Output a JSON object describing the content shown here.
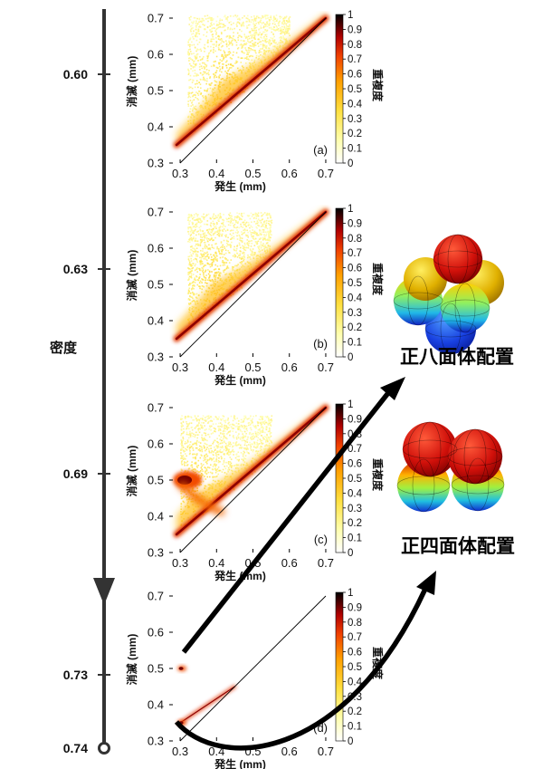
{
  "density_axis": {
    "label": "密度",
    "ticks": [
      {
        "value": "0.60",
        "panel": 0
      },
      {
        "value": "0.63",
        "panel": 1
      },
      {
        "value": "0.69",
        "panel": 2
      },
      {
        "value": "0.73",
        "panel": 3
      },
      {
        "value": "0.74",
        "panel": 4
      }
    ]
  },
  "configurations": {
    "octahedral": {
      "label": "正八面体配置"
    },
    "tetrahedral": {
      "label": "正四面体配置"
    }
  },
  "colors": {
    "cmap_low": "#ffffd0",
    "cmap_mid": "#ffb000",
    "cmap_high": "#e02000",
    "cmap_top": "#000000",
    "arrow": "#000000",
    "axis_line": "#333333"
  },
  "icons": [
    "octahedral-sphere-cluster-icon",
    "tetrahedral-sphere-cluster-icon"
  ],
  "chart_data": [
    {
      "type": "heatmap",
      "panel_label": "(a)",
      "xlabel": "発生 (mm)",
      "ylabel": "消滅 (mm)",
      "colorbar_label": "重複度",
      "xlim": [
        0.27,
        0.72
      ],
      "ylim": [
        0.3,
        0.72
      ],
      "xticks": [
        "0.3",
        "0.4",
        "0.5",
        "0.6",
        "0.7"
      ],
      "yticks": [
        "0.3",
        "0.4",
        "0.5",
        "0.6",
        "0.7"
      ],
      "colorbar_ticks": [
        "0",
        "0.1",
        "0.2",
        "0.3",
        "0.4",
        "0.5",
        "0.6",
        "0.7",
        "0.8",
        "0.9",
        "1"
      ],
      "diagonal": {
        "from": [
          0.3,
          0.3
        ],
        "to": [
          0.7,
          0.7
        ]
      },
      "band": {
        "birth_start": 0.29,
        "death_start": 0.35,
        "birth_end": 0.7,
        "death_end": 0.7
      },
      "cloud": {
        "birth_range": [
          0.32,
          0.6
        ],
        "death_max": 0.71,
        "peak_birth": 0.42
      }
    },
    {
      "type": "heatmap",
      "panel_label": "(b)",
      "xlabel": "発生 (mm)",
      "ylabel": "消滅 (mm)",
      "colorbar_label": "重複度",
      "xlim": [
        0.27,
        0.72
      ],
      "ylim": [
        0.3,
        0.72
      ],
      "xticks": [
        "0.3",
        "0.4",
        "0.5",
        "0.6",
        "0.7"
      ],
      "yticks": [
        "0.3",
        "0.4",
        "0.5",
        "0.6",
        "0.7"
      ],
      "colorbar_ticks": [
        "0",
        "0.1",
        "0.2",
        "0.3",
        "0.4",
        "0.5",
        "0.6",
        "0.7",
        "0.8",
        "0.9",
        "1"
      ],
      "diagonal": {
        "from": [
          0.3,
          0.3
        ],
        "to": [
          0.7,
          0.7
        ]
      },
      "band": {
        "birth_start": 0.29,
        "death_start": 0.35,
        "birth_end": 0.7,
        "death_end": 0.7
      },
      "cloud": {
        "birth_range": [
          0.32,
          0.55
        ],
        "death_max": 0.7,
        "peak_birth": 0.39
      }
    },
    {
      "type": "heatmap",
      "panel_label": "(c)",
      "xlabel": "発生 (mm)",
      "ylabel": "消滅 (mm)",
      "colorbar_label": "重複度",
      "xlim": [
        0.27,
        0.72
      ],
      "ylim": [
        0.3,
        0.72
      ],
      "xticks": [
        "0.3",
        "0.4",
        "0.5",
        "0.6",
        "0.7"
      ],
      "yticks": [
        "0.3",
        "0.4",
        "0.5",
        "0.6",
        "0.7"
      ],
      "colorbar_ticks": [
        "0",
        "0.1",
        "0.2",
        "0.3",
        "0.4",
        "0.5",
        "0.6",
        "0.7",
        "0.8",
        "0.9",
        "1"
      ],
      "diagonal": {
        "from": [
          0.3,
          0.3
        ],
        "to": [
          0.7,
          0.7
        ]
      },
      "band": {
        "birth_start": 0.29,
        "death_start": 0.35,
        "birth_end": 0.7,
        "death_end": 0.7
      },
      "cloud": {
        "birth_range": [
          0.3,
          0.55
        ],
        "death_max": 0.68,
        "peak_birth": 0.34
      },
      "hotspot": {
        "birth": 0.3,
        "death": 0.5
      }
    },
    {
      "type": "heatmap",
      "panel_label": "(d)",
      "xlabel": "発生 (mm)",
      "ylabel": "消滅 (mm)",
      "colorbar_label": "重複度",
      "xlim": [
        0.27,
        0.72
      ],
      "ylim": [
        0.3,
        0.72
      ],
      "xticks": [
        "0.3",
        "0.4",
        "0.5",
        "0.6",
        "0.7"
      ],
      "yticks": [
        "0.3",
        "0.4",
        "0.5",
        "0.6",
        "0.7"
      ],
      "colorbar_ticks": [
        "0",
        "0.1",
        "0.2",
        "0.3",
        "0.4",
        "0.5",
        "0.6",
        "0.7",
        "0.8",
        "0.9",
        "1"
      ],
      "diagonal": {
        "from": [
          0.3,
          0.3
        ],
        "to": [
          0.7,
          0.7
        ]
      },
      "band": {
        "birth_start": 0.3,
        "death_start": 0.35,
        "birth_end": 0.45,
        "death_end": 0.45
      },
      "hotspots": [
        {
          "birth": 0.3,
          "death": 0.5
        },
        {
          "birth": 0.3,
          "death": 0.35
        }
      ]
    }
  ]
}
